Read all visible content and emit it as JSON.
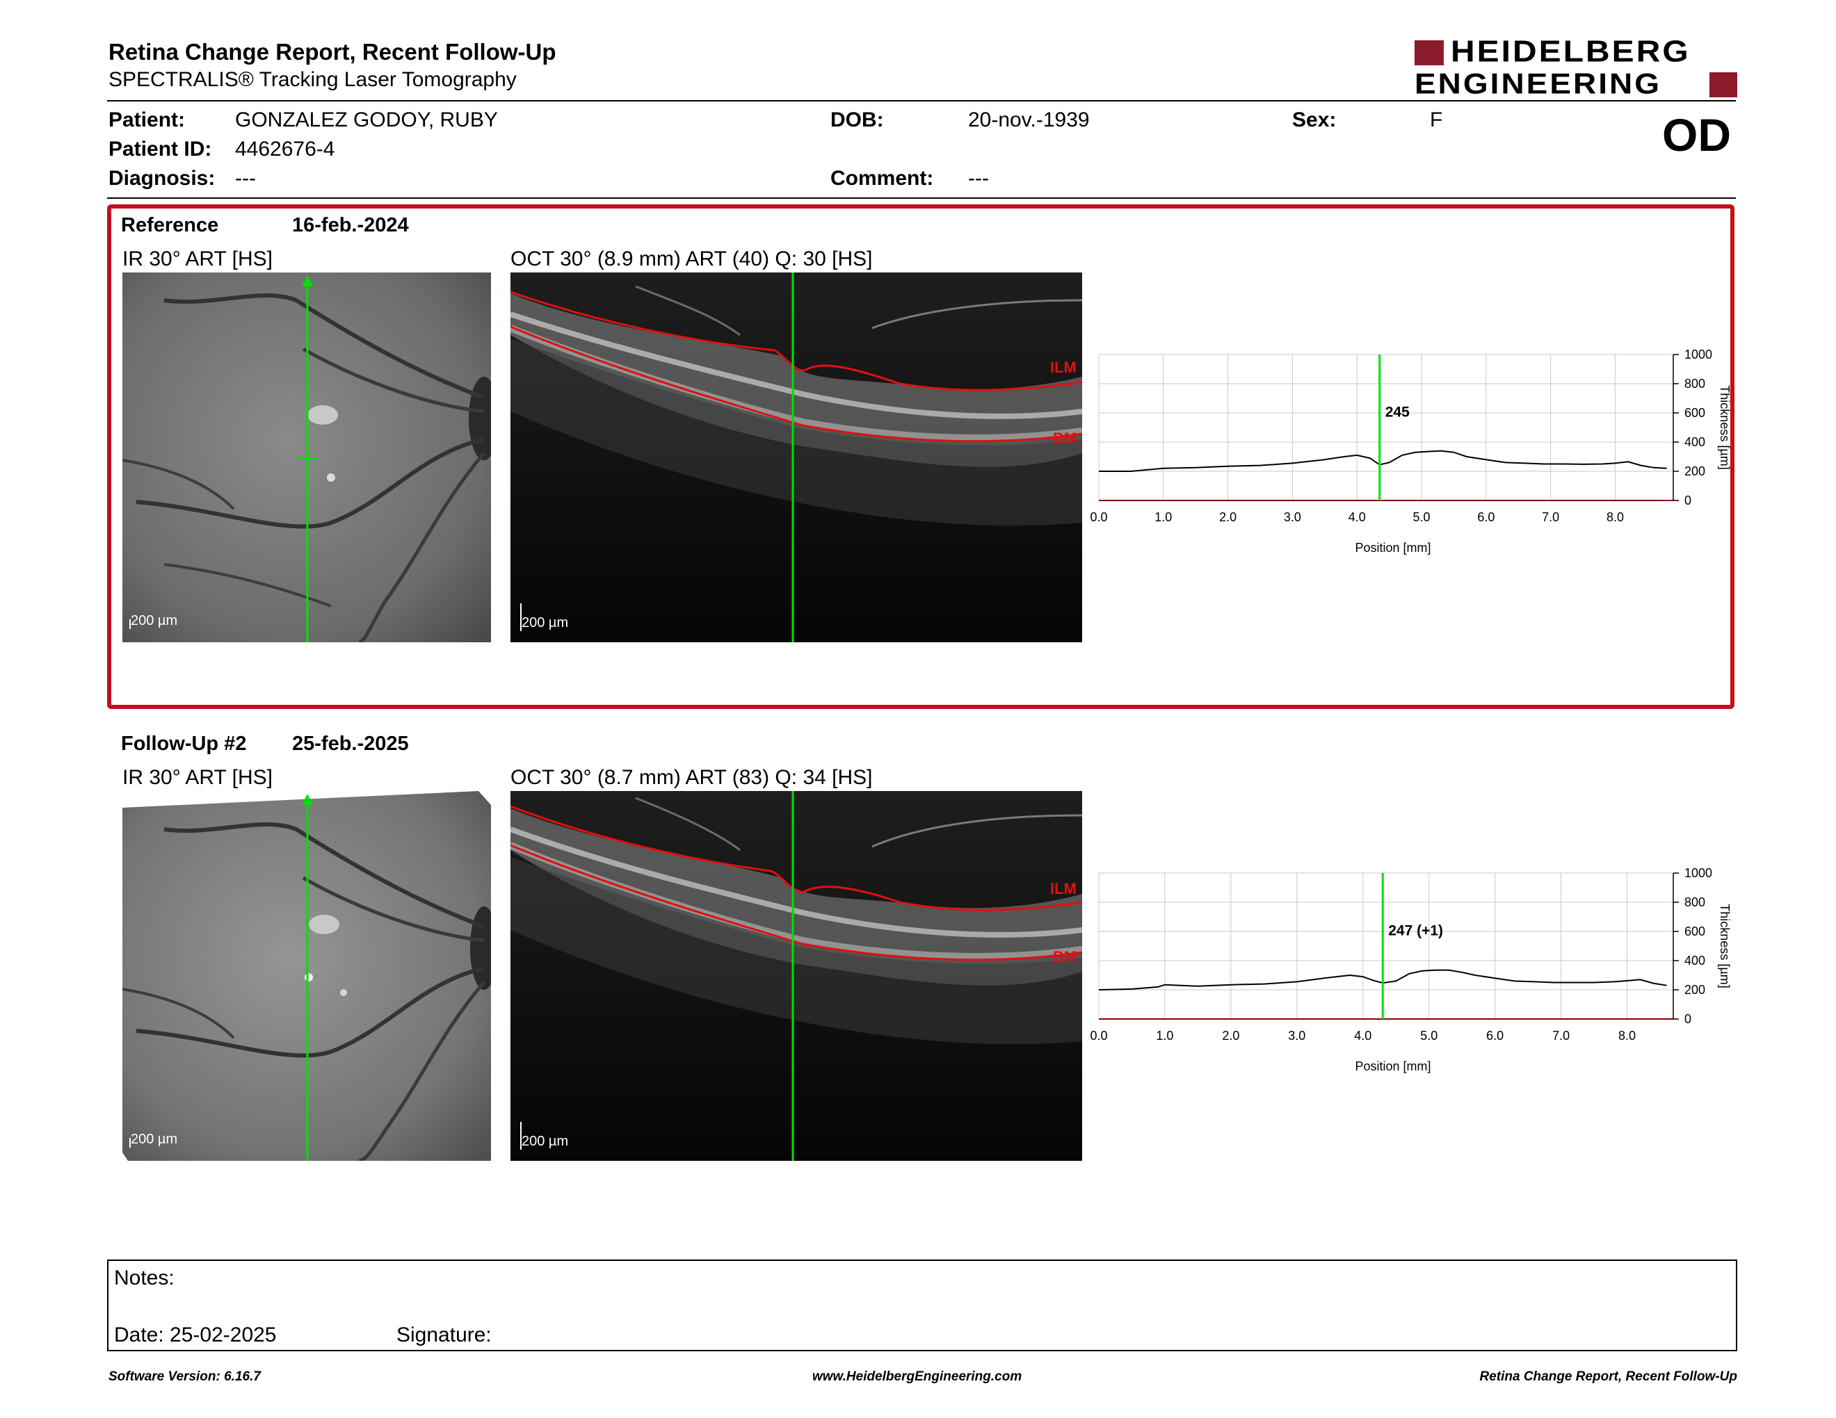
{
  "report": {
    "title": "Retina Change Report, Recent Follow-Up",
    "subtitle": "SPECTRALIS® Tracking Laser Tomography",
    "logo_line1": "HEIDELBERG",
    "logo_line2": "ENGINEERING",
    "eye": "OD"
  },
  "patient": {
    "patient_label": "Patient:",
    "patient_value": "GONZALEZ GODOY, RUBY",
    "id_label": "Patient ID:",
    "id_value": "4462676-4",
    "diagnosis_label": "Diagnosis:",
    "diagnosis_value": "---",
    "dob_label": "DOB:",
    "dob_value": "20-nov.-1939",
    "comment_label": "Comment:",
    "comment_value": "---",
    "sex_label": "Sex:",
    "sex_value": "F"
  },
  "reference": {
    "label": "Reference",
    "date": "16-feb.-2024",
    "ir_label": "IR 30° ART [HS]",
    "oct_label": "OCT 30° (8.9 mm) ART (40) Q: 30 [HS]",
    "scale": "200 µm"
  },
  "followup": {
    "label": "Follow-Up #2",
    "date": "25-feb.-2025",
    "ir_label": "IR 30° ART [HS]",
    "oct_label": "OCT 30° (8.7 mm) ART (83) Q: 34 [HS]",
    "scale": "200 µm"
  },
  "layer_labels": {
    "ilm": "ILM",
    "bm": "BM"
  },
  "colors": {
    "accent": "#c3101c",
    "marker": "#00e000",
    "logo": "#8c1b2c"
  },
  "chart_data": [
    {
      "type": "line",
      "xlabel": "Position [mm]",
      "ylabel": "Thickness [µm]",
      "xlim": [
        0,
        8.9
      ],
      "ylim": [
        0,
        1000
      ],
      "x_ticks": [
        "0.0",
        "1.0",
        "2.0",
        "3.0",
        "4.0",
        "5.0",
        "6.0",
        "7.0",
        "8.0"
      ],
      "y_ticks": [
        "0",
        "200",
        "400",
        "600",
        "800",
        "1000"
      ],
      "marker_x": 4.35,
      "marker_label": "245",
      "grid": true,
      "series": [
        {
          "x": [
            0.0,
            0.5,
            1.0,
            1.5,
            2.0,
            2.5,
            3.0,
            3.5,
            3.8,
            4.0,
            4.2,
            4.35,
            4.5,
            4.7,
            4.9,
            5.1,
            5.3,
            5.5,
            5.7,
            6.0,
            6.3,
            6.6,
            6.9,
            7.2,
            7.5,
            7.8,
            8.0,
            8.2,
            8.4,
            8.6,
            8.8
          ],
          "y": [
            200,
            200,
            220,
            225,
            235,
            240,
            255,
            280,
            300,
            310,
            290,
            245,
            260,
            310,
            330,
            335,
            340,
            330,
            300,
            280,
            260,
            255,
            250,
            250,
            248,
            250,
            255,
            265,
            240,
            225,
            220
          ]
        }
      ]
    },
    {
      "type": "line",
      "xlabel": "Position [mm]",
      "ylabel": "Thickness [µm]",
      "xlim": [
        0,
        8.7
      ],
      "ylim": [
        0,
        1000
      ],
      "x_ticks": [
        "0.0",
        "1.0",
        "2.0",
        "3.0",
        "4.0",
        "5.0",
        "6.0",
        "7.0",
        "8.0"
      ],
      "y_ticks": [
        "0",
        "200",
        "400",
        "600",
        "800",
        "1000"
      ],
      "marker_x": 4.3,
      "marker_label": "247 (+1)",
      "grid": true,
      "series": [
        {
          "x": [
            0.0,
            0.5,
            0.9,
            1.0,
            1.5,
            2.0,
            2.5,
            3.0,
            3.5,
            3.8,
            4.0,
            4.15,
            4.3,
            4.5,
            4.7,
            4.9,
            5.1,
            5.3,
            5.5,
            5.7,
            6.0,
            6.3,
            6.6,
            6.9,
            7.2,
            7.5,
            7.8,
            8.0,
            8.2,
            8.4,
            8.6
          ],
          "y": [
            200,
            205,
            220,
            235,
            225,
            235,
            240,
            255,
            285,
            300,
            290,
            265,
            247,
            260,
            310,
            330,
            335,
            335,
            320,
            300,
            280,
            260,
            255,
            250,
            250,
            250,
            255,
            262,
            270,
            245,
            230
          ]
        }
      ]
    }
  ],
  "notes": {
    "notes_label": "Notes:",
    "date_label": "Date: 25-02-2025",
    "signature_label": "Signature:"
  },
  "footer": {
    "left": "Software Version: 6.16.7",
    "center": "www.HeidelbergEngineering.com",
    "right": "Retina Change Report, Recent Follow-Up"
  }
}
